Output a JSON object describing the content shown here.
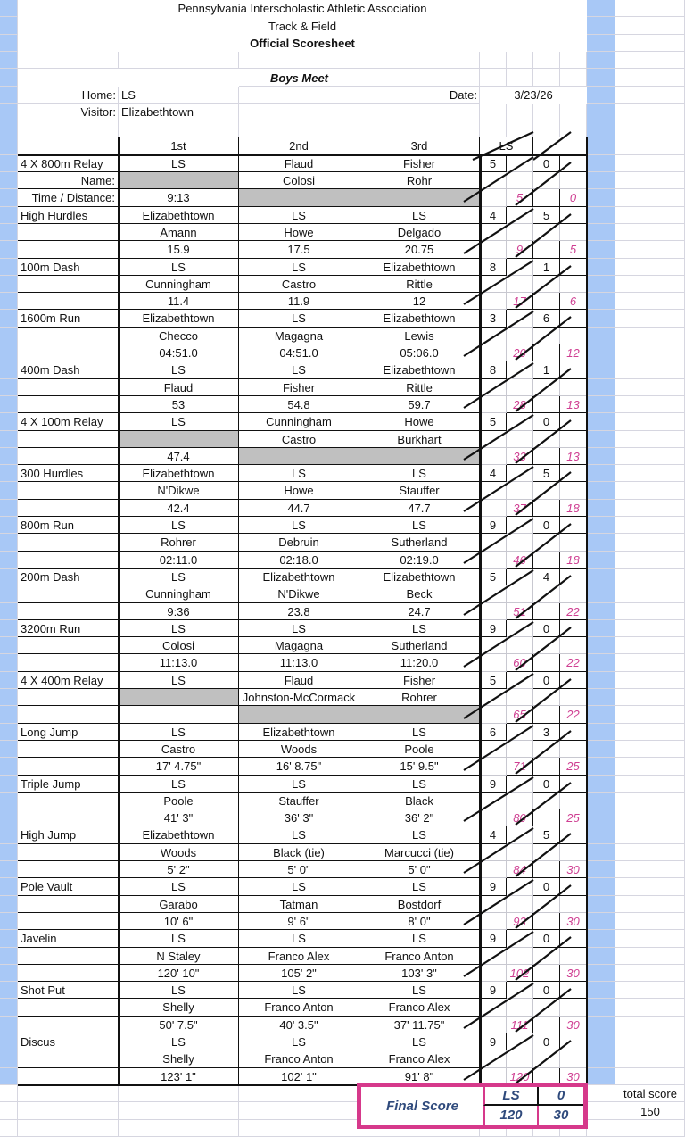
{
  "header": {
    "org": "Pennsylvania Interscholastic Athletic Association",
    "sport": "Track & Field",
    "title": "Official Scoresheet",
    "meet": "Boys Meet",
    "home_label": "Home:",
    "home": "LS",
    "visitor_label": "Visitor:",
    "visitor": "Elizabethtown",
    "date_label": "Date:",
    "date": "3/23/26"
  },
  "columns": {
    "first": "1st",
    "second": "2nd",
    "third": "3rd",
    "score_team": "LS"
  },
  "row_labels": {
    "name": "Name:",
    "mark": "Time / Distance:"
  },
  "events": [
    {
      "name": "4 X 800m Relay",
      "places": [
        "LS",
        "Flaud",
        "Fisher"
      ],
      "names": [
        null,
        "Colosi",
        "Rohr"
      ],
      "marks": [
        "9:13",
        null,
        null
      ],
      "home_pts": "5",
      "visitor_pts": "0",
      "home_total": "5",
      "visitor_total": "0"
    },
    {
      "name": "High Hurdles",
      "places": [
        "Elizabethtown",
        "LS",
        "LS"
      ],
      "names": [
        "Amann",
        "Howe",
        "Delgado"
      ],
      "marks": [
        "15.9",
        "17.5",
        "20.75"
      ],
      "home_pts": "4",
      "visitor_pts": "5",
      "home_total": "9",
      "visitor_total": "5"
    },
    {
      "name": "100m Dash",
      "places": [
        "LS",
        "LS",
        "Elizabethtown"
      ],
      "names": [
        "Cunningham",
        "Castro",
        "Rittle"
      ],
      "marks": [
        "11.4",
        "11.9",
        "12"
      ],
      "home_pts": "8",
      "visitor_pts": "1",
      "home_total": "17",
      "visitor_total": "6"
    },
    {
      "name": "1600m Run",
      "places": [
        "Elizabethtown",
        "LS",
        "Elizabethtown"
      ],
      "names": [
        "Checco",
        "Magagna",
        "Lewis"
      ],
      "marks": [
        "04:51.0",
        "04:51.0",
        "05:06.0"
      ],
      "home_pts": "3",
      "visitor_pts": "6",
      "home_total": "20",
      "visitor_total": "12"
    },
    {
      "name": "400m Dash",
      "places": [
        "LS",
        "LS",
        "Elizabethtown"
      ],
      "names": [
        "Flaud",
        "Fisher",
        "Rittle"
      ],
      "marks": [
        "53",
        "54.8",
        "59.7"
      ],
      "home_pts": "8",
      "visitor_pts": "1",
      "home_total": "28",
      "visitor_total": "13"
    },
    {
      "name": "4 X 100m Relay",
      "places": [
        "LS",
        "Cunningham",
        "Howe"
      ],
      "names": [
        null,
        "Castro",
        "Burkhart"
      ],
      "marks": [
        "47.4",
        null,
        null
      ],
      "home_pts": "5",
      "visitor_pts": "0",
      "home_total": "33",
      "visitor_total": "13"
    },
    {
      "name": "300 Hurdles",
      "places": [
        "Elizabethtown",
        "LS",
        "LS"
      ],
      "names": [
        "N'Dikwe",
        "Howe",
        "Stauffer"
      ],
      "marks": [
        "42.4",
        "44.7",
        "47.7"
      ],
      "home_pts": "4",
      "visitor_pts": "5",
      "home_total": "37",
      "visitor_total": "18"
    },
    {
      "name": "800m Run",
      "places": [
        "LS",
        "LS",
        "LS"
      ],
      "names": [
        "Rohrer",
        "Debruin",
        "Sutherland"
      ],
      "marks": [
        "02:11.0",
        "02:18.0",
        "02:19.0"
      ],
      "home_pts": "9",
      "visitor_pts": "0",
      "home_total": "46",
      "visitor_total": "18"
    },
    {
      "name": "200m Dash",
      "places": [
        "LS",
        "Elizabethtown",
        "Elizabethtown"
      ],
      "names": [
        "Cunningham",
        "N'Dikwe",
        "Beck"
      ],
      "marks": [
        "9:36",
        "23.8",
        "24.7"
      ],
      "home_pts": "5",
      "visitor_pts": "4",
      "home_total": "51",
      "visitor_total": "22"
    },
    {
      "name": "3200m Run",
      "places": [
        "LS",
        "LS",
        "LS"
      ],
      "names": [
        "Colosi",
        "Magagna",
        "Sutherland"
      ],
      "marks": [
        "11:13.0",
        "11:13.0",
        "11:20.0"
      ],
      "home_pts": "9",
      "visitor_pts": "0",
      "home_total": "60",
      "visitor_total": "22"
    },
    {
      "name": "4 X 400m Relay",
      "places": [
        "LS",
        "Flaud",
        "Fisher"
      ],
      "names": [
        null,
        "Johnston-McCormack",
        "Rohrer"
      ],
      "marks": [
        "",
        null,
        null
      ],
      "home_pts": "5",
      "visitor_pts": "0",
      "home_total": "65",
      "visitor_total": "22"
    },
    {
      "name": "Long Jump",
      "places": [
        "LS",
        "Elizabethtown",
        "LS"
      ],
      "names": [
        "Castro",
        "Woods",
        "Poole"
      ],
      "marks": [
        "17' 4.75\"",
        "16' 8.75\"",
        "15' 9.5\""
      ],
      "home_pts": "6",
      "visitor_pts": "3",
      "home_total": "71",
      "visitor_total": "25"
    },
    {
      "name": "Triple Jump",
      "places": [
        "LS",
        "LS",
        "LS"
      ],
      "names": [
        "Poole",
        "Stauffer",
        "Black"
      ],
      "marks": [
        "41' 3\"",
        "36' 3\"",
        "36' 2\""
      ],
      "home_pts": "9",
      "visitor_pts": "0",
      "home_total": "80",
      "visitor_total": "25"
    },
    {
      "name": "High Jump",
      "places": [
        "Elizabethtown",
        "LS",
        "LS"
      ],
      "names": [
        "Woods",
        "Black (tie)",
        "Marcucci (tie)"
      ],
      "marks": [
        "5' 2\"",
        "5' 0\"",
        "5' 0\""
      ],
      "home_pts": "4",
      "visitor_pts": "5",
      "home_total": "84",
      "visitor_total": "30"
    },
    {
      "name": "Pole Vault",
      "places": [
        "LS",
        "LS",
        "LS"
      ],
      "names": [
        "Garabo",
        "Tatman",
        "Bostdorf"
      ],
      "marks": [
        "10' 6\"",
        "9' 6\"",
        "8' 0\""
      ],
      "home_pts": "9",
      "visitor_pts": "0",
      "home_total": "93",
      "visitor_total": "30"
    },
    {
      "name": "Javelin",
      "places": [
        "LS",
        "LS",
        "LS"
      ],
      "names": [
        "N Staley",
        "Franco Alex",
        "Franco Anton"
      ],
      "marks": [
        "120' 10\"",
        "105' 2\"",
        "103' 3\""
      ],
      "home_pts": "9",
      "visitor_pts": "0",
      "home_total": "102",
      "visitor_total": "30"
    },
    {
      "name": "Shot Put",
      "places": [
        "LS",
        "LS",
        "LS"
      ],
      "names": [
        "Shelly",
        "Franco Anton",
        "Franco Alex"
      ],
      "marks": [
        "50' 7.5\"",
        "40' 3.5\"",
        "37' 11.75\""
      ],
      "home_pts": "9",
      "visitor_pts": "0",
      "home_total": "111",
      "visitor_total": "30"
    },
    {
      "name": "Discus",
      "places": [
        "LS",
        "LS",
        "LS"
      ],
      "names": [
        "Shelly",
        "Franco Anton",
        "Franco Alex"
      ],
      "marks": [
        "123' 1\"",
        "102' 1\"",
        "91' 8\""
      ],
      "home_pts": "9",
      "visitor_pts": "0",
      "home_total": "120",
      "visitor_total": "30"
    }
  ],
  "final": {
    "label": "Final Score",
    "top_left": "LS",
    "top_right": "0",
    "home_score": "120",
    "visitor_score": "30",
    "total_label": "total score",
    "total": "150"
  },
  "colors": {
    "accent_pink": "#d6398b",
    "score_pink": "#cf3f92",
    "final_blue": "#2f4a7c",
    "frozen_column_blue": "#a8c8f6",
    "shaded_cell": "#c0c0c0"
  }
}
